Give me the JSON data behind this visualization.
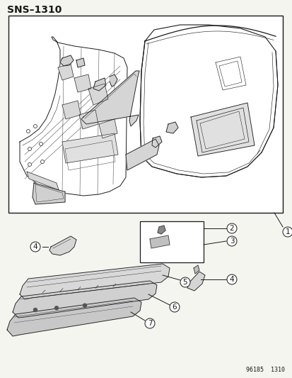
{
  "title": "SNS–1310",
  "bg_color": "#f5f5f0",
  "line_color": "#1a1a1a",
  "title_fontsize": 10,
  "label_fontsize": 7.5,
  "footer_fontsize": 6,
  "footer_text": "96185  1310"
}
